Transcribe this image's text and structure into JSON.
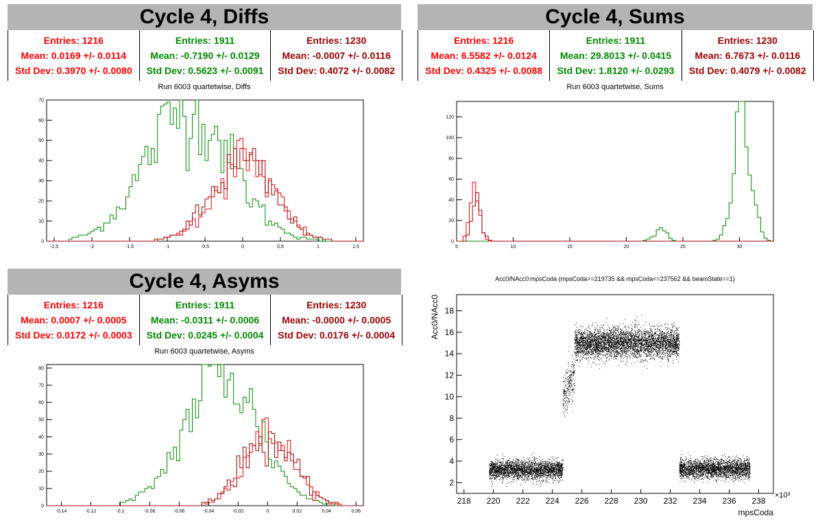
{
  "colors": {
    "red": "#ff0000",
    "green": "#008800",
    "darkred": "#990000",
    "banner": "#b4b4b4"
  },
  "panels": {
    "diffs": {
      "title": "Cycle 4, Diffs",
      "subtitle": "Run 6003 quartetwise, Diffs",
      "stats": [
        {
          "entries": "Entries: 1216",
          "mean": "Mean: 0.0169 +/- 0.0114",
          "std": "Std Dev: 0.3970 +/- 0.0080",
          "color": "#ff0000"
        },
        {
          "entries": "Entries: 1911",
          "mean": "Mean: -0.7190 +/- 0.0129",
          "std": "Std Dev: 0.5623 +/- 0.0091",
          "color": "#008800"
        },
        {
          "entries": "Entries: 1230",
          "mean": "Mean: -0.0007 +/- 0.0116",
          "std": "Std Dev: 0.4072 +/- 0.0082",
          "color": "#990000"
        }
      ]
    },
    "sums": {
      "title": "Cycle 4, Sums",
      "subtitle": "Run 6003 quartetwise, Sums",
      "stats": [
        {
          "entries": "Entries: 1216",
          "mean": "Mean: 6.5582 +/- 0.0124",
          "std": "Std Dev: 0.4325 +/- 0.0088",
          "color": "#ff0000"
        },
        {
          "entries": "Entries: 1911",
          "mean": "Mean: 29.8013 +/- 0.0415",
          "std": "Std Dev: 1.8120 +/- 0.0293",
          "color": "#008800"
        },
        {
          "entries": "Entries: 1230",
          "mean": "Mean: 6.7673 +/- 0.0116",
          "std": "Std Dev: 0.4079 +/- 0.0082",
          "color": "#990000"
        }
      ]
    },
    "asyms": {
      "title": "Cycle 4, Asyms",
      "subtitle": "Run 6003 quartetwise, Asyms",
      "stats": [
        {
          "entries": "Entries: 1216",
          "mean": "Mean: 0.0007 +/- 0.0005",
          "std": "Std Dev: 0.0172 +/- 0.0003",
          "color": "#ff0000"
        },
        {
          "entries": "Entries: 1911",
          "mean": "Mean: -0.0311 +/- 0.0006",
          "std": "Std Dev: 0.0245 +/- 0.0004",
          "color": "#008800"
        },
        {
          "entries": "Entries: 1230",
          "mean": "Mean: -0.0000 +/- 0.0005",
          "std": "Std Dev: 0.0176 +/- 0.0004",
          "color": "#990000"
        }
      ]
    },
    "scatter": {
      "subtitle": "Acc0/NAcc0:mpsCoda (mpsCoda>=219735 && mpsCoda<=237562 && beamState==1)"
    }
  },
  "chart_data": [
    {
      "type": "line",
      "id": "diffs",
      "xlim": [
        -2.6,
        1.6
      ],
      "ylim": [
        0,
        70
      ],
      "xticks": [
        "-2.5",
        "-2",
        "-1.5",
        "-1",
        "-0.5",
        "0",
        "0.5",
        "1",
        "1.5"
      ],
      "xtick_values": [
        -2.5,
        -2,
        -1.5,
        -1,
        -0.5,
        0,
        0.5,
        1,
        1.5
      ],
      "yticks": [
        "0",
        "10",
        "20",
        "30",
        "40",
        "50",
        "60",
        "70"
      ],
      "ytick_values": [
        0,
        10,
        20,
        30,
        40,
        50,
        60,
        70
      ],
      "series": [
        {
          "color": "#008800",
          "mean": -0.719,
          "sd": 0.5623,
          "peak": 66,
          "lo": -2.3,
          "hi": 1.1
        },
        {
          "color": "#ff0000",
          "mean": 0.0169,
          "sd": 0.397,
          "peak": 40,
          "lo": -1.3,
          "hi": 1.25
        },
        {
          "color": "#990000",
          "mean": -0.0007,
          "sd": 0.4072,
          "peak": 39,
          "lo": -1.3,
          "hi": 1.2
        }
      ]
    },
    {
      "type": "line",
      "id": "sums",
      "xlim": [
        5,
        33
      ],
      "ylim": [
        0,
        135
      ],
      "xticks": [
        "5",
        "10",
        "15",
        "20",
        "25",
        "30"
      ],
      "xtick_values": [
        5,
        10,
        15,
        20,
        25,
        30
      ],
      "yticks": [
        "0",
        "20",
        "40",
        "60",
        "80",
        "100",
        "120"
      ],
      "ytick_values": [
        0,
        20,
        40,
        60,
        80,
        100,
        120
      ],
      "series": [
        {
          "color": "#008800",
          "mean": 30.3,
          "sd": 0.75,
          "peak": 133,
          "lo": 27.8,
          "hi": 32.8,
          "extra": {
            "mean": 23.0,
            "sd": 0.6,
            "peak": 10,
            "lo": 21.5,
            "hi": 24.8
          }
        },
        {
          "color": "#ff0000",
          "mean": 6.55,
          "sd": 0.43,
          "peak": 50,
          "lo": 5.6,
          "hi": 7.8
        },
        {
          "color": "#990000",
          "mean": 6.77,
          "sd": 0.41,
          "peak": 40,
          "lo": 5.8,
          "hi": 8.0
        }
      ]
    },
    {
      "type": "line",
      "id": "asyms",
      "xlim": [
        -0.15,
        0.065
      ],
      "ylim": [
        0,
        82
      ],
      "xticks": [
        "-0.14",
        "-0.12",
        "-0.1",
        "-0.08",
        "-0.06",
        "-0.04",
        "-0.02",
        "0",
        "0.02",
        "0.04",
        "0.06"
      ],
      "xtick_values": [
        -0.14,
        -0.12,
        -0.1,
        -0.08,
        -0.06,
        -0.04,
        -0.02,
        0,
        0.02,
        0.04,
        0.06
      ],
      "yticks": [
        "0",
        "10",
        "20",
        "30",
        "40",
        "50",
        "60",
        "70",
        "80"
      ],
      "ytick_values": [
        0,
        10,
        20,
        30,
        40,
        50,
        60,
        70,
        80
      ],
      "series": [
        {
          "color": "#008800",
          "mean": -0.031,
          "sd": 0.0245,
          "peak": 78,
          "lo": -0.1,
          "hi": 0.045
        },
        {
          "color": "#ff0000",
          "mean": 0.0007,
          "sd": 0.0172,
          "peak": 40,
          "lo": -0.045,
          "hi": 0.05
        },
        {
          "color": "#990000",
          "mean": 0.0,
          "sd": 0.0176,
          "peak": 39,
          "lo": -0.045,
          "hi": 0.048
        }
      ]
    },
    {
      "type": "scatter",
      "id": "scatter",
      "xlabel": "mpsCoda",
      "ylabel": "Acc0/NAcc0",
      "xscale_label": "×10³",
      "xlim": [
        217.5,
        239
      ],
      "ylim": [
        1,
        19.5
      ],
      "xticks": [
        "218",
        "220",
        "222",
        "224",
        "226",
        "228",
        "230",
        "232",
        "234",
        "236",
        "238"
      ],
      "xtick_values": [
        218,
        220,
        222,
        224,
        226,
        228,
        230,
        232,
        234,
        236,
        238
      ],
      "yticks": [
        "2",
        "4",
        "6",
        "8",
        "10",
        "12",
        "14",
        "16",
        "18"
      ],
      "ytick_values": [
        2,
        4,
        6,
        8,
        10,
        12,
        14,
        16,
        18
      ],
      "clusters": [
        {
          "x0": 219.7,
          "x1": 224.7,
          "y": 3.2,
          "sy": 0.45,
          "n": 2600
        },
        {
          "x0": 224.7,
          "x1": 225.5,
          "y": 11.0,
          "sy": 1.0,
          "n": 250
        },
        {
          "x0": 225.5,
          "x1": 232.6,
          "y": 15.0,
          "sy": 0.7,
          "n": 4200
        },
        {
          "x0": 232.6,
          "x1": 237.4,
          "y": 3.3,
          "sy": 0.45,
          "n": 2500
        }
      ]
    }
  ]
}
